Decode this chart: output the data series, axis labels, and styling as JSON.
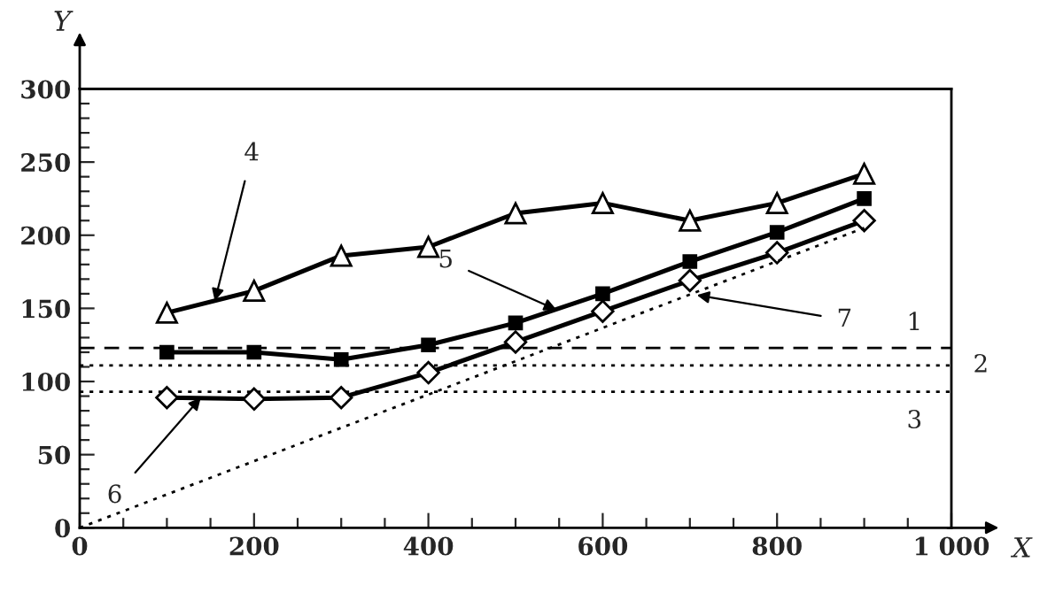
{
  "chart_data": {
    "type": "line",
    "xlabel": "X",
    "ylabel": "Y",
    "xlim": [
      0,
      1000
    ],
    "ylim": [
      0,
      300
    ],
    "xticks": [
      0,
      200,
      400,
      600,
      800,
      {
        "value": 1000,
        "label": "1 000"
      }
    ],
    "yticks": [
      0,
      50,
      100,
      150,
      200,
      250,
      300
    ],
    "grid": false,
    "legend": false,
    "series": [
      {
        "color": "#000000",
        "marker": "triangle",
        "line_style": "solid",
        "x": [
          100,
          200,
          300,
          400,
          500,
          600,
          700,
          800,
          900
        ],
        "values": [
          147,
          162,
          186,
          192,
          215,
          222,
          210,
          222,
          242
        ]
      },
      {
        "color": "#000000",
        "marker": "square",
        "line_style": "solid",
        "x": [
          100,
          200,
          300,
          400,
          500,
          600,
          700,
          800,
          900
        ],
        "values": [
          120,
          120,
          115,
          125,
          140,
          160,
          182,
          202,
          225
        ]
      },
      {
        "color": "#000000",
        "marker": "diamond",
        "line_style": "solid",
        "x": [
          100,
          200,
          300,
          400,
          500,
          600,
          700,
          800,
          900
        ],
        "values": [
          89,
          88,
          89,
          106,
          127,
          148,
          169,
          188,
          210
        ]
      },
      {
        "color": "#000000",
        "marker": "none",
        "line_style": "dotted",
        "x": [
          0,
          900
        ],
        "values": [
          0,
          205
        ]
      }
    ],
    "ref_lines": [
      {
        "axis": "y",
        "value": 123,
        "color": "#000000",
        "line_style": "dashed"
      },
      {
        "axis": "y",
        "value": 111,
        "color": "#000000",
        "line_style": "dotted"
      },
      {
        "axis": "y",
        "value": 93,
        "color": "#000000",
        "line_style": "dotted"
      }
    ],
    "annotations": [
      {
        "text": "1",
        "x": 1000,
        "y": 123
      },
      {
        "text": "2",
        "x": 1000,
        "y": 111
      },
      {
        "text": "3",
        "x": 1000,
        "y": 93
      },
      {
        "text": "4",
        "x": 155,
        "y": 155
      },
      {
        "text": "5",
        "x": 547,
        "y": 149
      },
      {
        "text": "6",
        "x": 139,
        "y": 89
      },
      {
        "text": "7",
        "x": 708,
        "y": 159
      }
    ]
  }
}
